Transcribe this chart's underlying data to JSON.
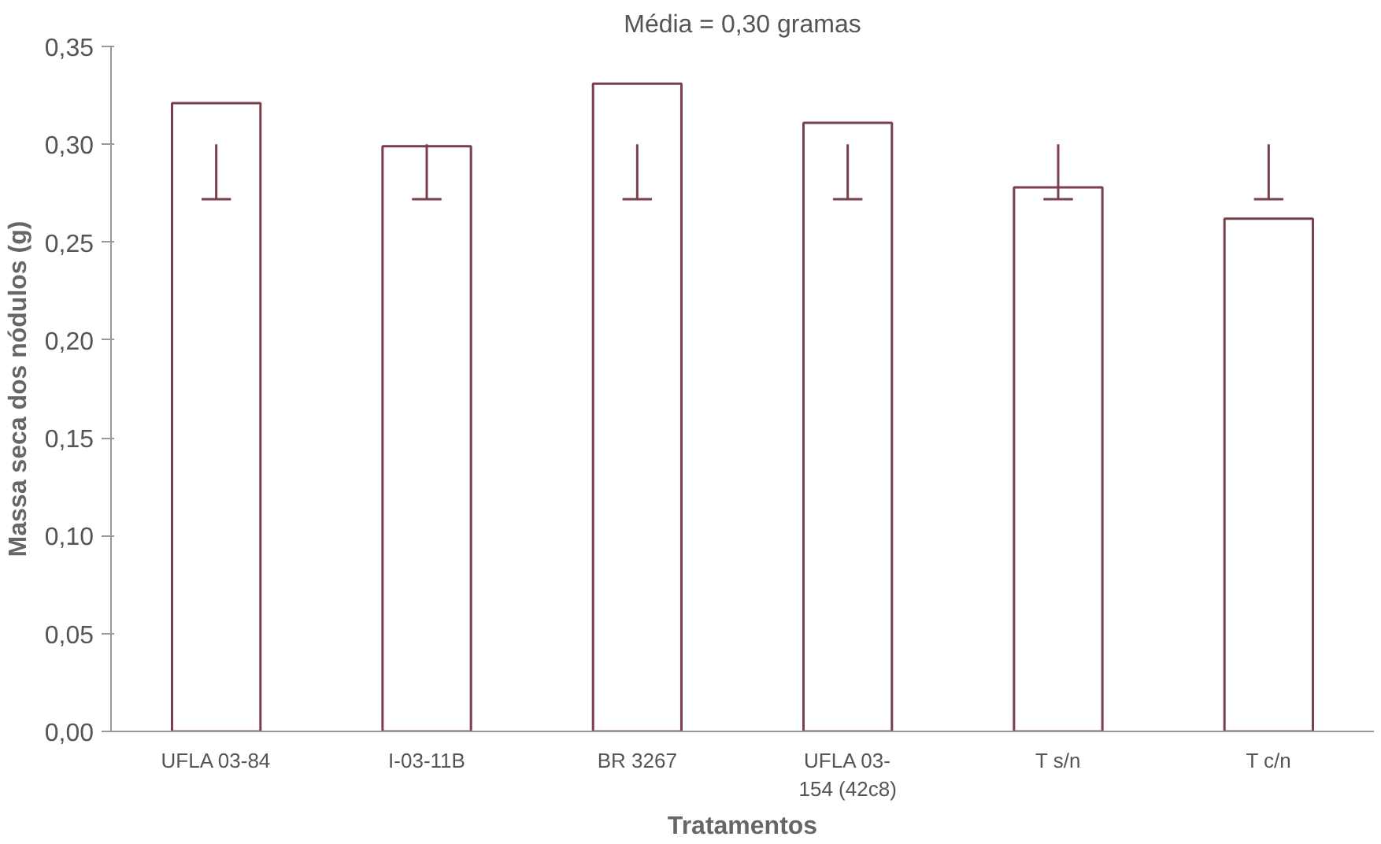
{
  "chart_data": {
    "type": "bar",
    "title": "Média = 0,30 gramas",
    "xlabel": "Tratamentos",
    "ylabel": "Massa seca dos nódulos (g)",
    "categories": [
      "UFLA 03-84",
      "I-03-11B",
      "BR 3267",
      "UFLA 03-\n154 (42c8)",
      "T s/n",
      "T c/n"
    ],
    "values": [
      0.321,
      0.299,
      0.331,
      0.311,
      0.278,
      0.262
    ],
    "errors": [
      [
        0.272,
        0.3
      ],
      [
        0.272,
        0.3
      ],
      [
        0.272,
        0.3
      ],
      [
        0.272,
        0.3
      ],
      [
        0.272,
        0.3
      ],
      [
        0.272,
        0.3
      ]
    ],
    "color": "#7a3f4a",
    "ylim": [
      0,
      0.35
    ],
    "yticks": [
      {
        "value": 0,
        "label": "0,00"
      },
      {
        "value": 0.05,
        "label": "0,05"
      },
      {
        "value": 0.1,
        "label": "0,10"
      },
      {
        "value": 0.15,
        "label": "0,15"
      },
      {
        "value": 0.2,
        "label": "0,20"
      },
      {
        "value": 0.25,
        "label": "0,25"
      },
      {
        "value": 0.3,
        "label": "0,30"
      },
      {
        "value": 0.35,
        "label": "0,35"
      }
    ],
    "grid": false
  }
}
